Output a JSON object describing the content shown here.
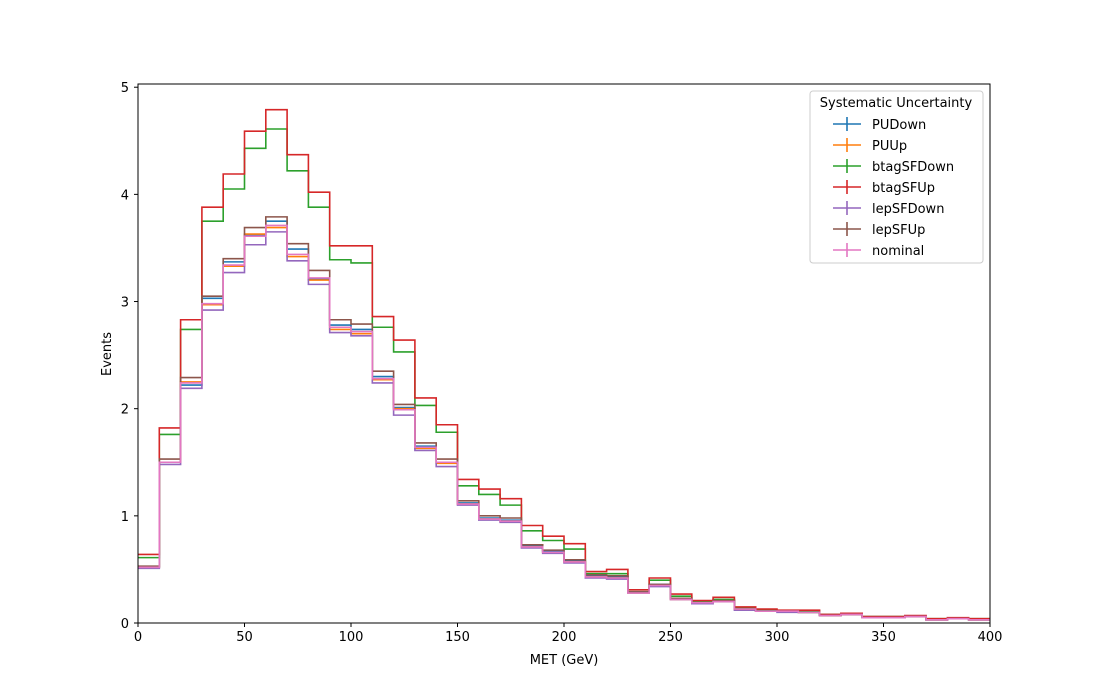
{
  "chart_data": {
    "type": "histogram-step",
    "xlabel": "MET (GeV)",
    "ylabel": "Events",
    "xlim": [
      0,
      400
    ],
    "ylim": [
      0,
      5.03
    ],
    "x_ticks": [
      0,
      50,
      100,
      150,
      200,
      250,
      300,
      350,
      400
    ],
    "y_ticks": [
      0,
      1,
      2,
      3,
      4,
      5
    ],
    "grid": false,
    "bin_edges": [
      0,
      10,
      20,
      30,
      40,
      50,
      60,
      70,
      80,
      90,
      100,
      110,
      120,
      130,
      140,
      150,
      160,
      170,
      180,
      190,
      200,
      210,
      220,
      230,
      240,
      250,
      260,
      270,
      280,
      290,
      300,
      310,
      320,
      330,
      340,
      350,
      360,
      370,
      380,
      390,
      400
    ],
    "legend": {
      "title": "Systematic Uncertainty",
      "position": "upper right"
    },
    "series": [
      {
        "name": "PUDown",
        "color": "#1f77b4",
        "values": [
          0.52,
          1.5,
          2.22,
          3.03,
          3.37,
          3.62,
          3.75,
          3.49,
          3.21,
          2.78,
          2.74,
          2.3,
          2.01,
          1.65,
          1.5,
          1.12,
          0.98,
          0.96,
          0.72,
          0.67,
          0.58,
          0.44,
          0.43,
          0.29,
          0.36,
          0.23,
          0.19,
          0.21,
          0.13,
          0.11,
          0.11,
          0.1,
          0.07,
          0.08,
          0.05,
          0.05,
          0.06,
          0.03,
          0.04,
          0.03
        ]
      },
      {
        "name": "PUUp",
        "color": "#ff7f0e",
        "values": [
          0.52,
          1.5,
          2.25,
          2.97,
          3.33,
          3.63,
          3.69,
          3.42,
          3.2,
          2.74,
          2.7,
          2.27,
          2.0,
          1.63,
          1.49,
          1.11,
          0.97,
          0.95,
          0.71,
          0.66,
          0.57,
          0.43,
          0.42,
          0.28,
          0.35,
          0.22,
          0.19,
          0.2,
          0.13,
          0.11,
          0.11,
          0.1,
          0.07,
          0.08,
          0.05,
          0.05,
          0.06,
          0.03,
          0.04,
          0.03
        ]
      },
      {
        "name": "btagSFDown",
        "color": "#2ca02c",
        "values": [
          0.61,
          1.76,
          2.74,
          3.75,
          4.05,
          4.43,
          4.61,
          4.22,
          3.88,
          3.39,
          3.36,
          2.76,
          2.53,
          2.03,
          1.78,
          1.28,
          1.2,
          1.1,
          0.86,
          0.77,
          0.69,
          0.46,
          0.46,
          0.31,
          0.4,
          0.25,
          0.2,
          0.22,
          0.14,
          0.12,
          0.11,
          0.11,
          0.08,
          0.09,
          0.06,
          0.06,
          0.06,
          0.04,
          0.04,
          0.04
        ]
      },
      {
        "name": "btagSFUp",
        "color": "#d62728",
        "values": [
          0.64,
          1.82,
          2.83,
          3.88,
          4.19,
          4.59,
          4.79,
          4.37,
          4.02,
          3.52,
          3.52,
          2.86,
          2.64,
          2.1,
          1.85,
          1.34,
          1.25,
          1.16,
          0.91,
          0.81,
          0.74,
          0.48,
          0.5,
          0.31,
          0.42,
          0.27,
          0.21,
          0.24,
          0.15,
          0.13,
          0.12,
          0.12,
          0.08,
          0.09,
          0.06,
          0.06,
          0.07,
          0.04,
          0.05,
          0.04
        ]
      },
      {
        "name": "lepSFDown",
        "color": "#9467bd",
        "values": [
          0.51,
          1.48,
          2.19,
          2.92,
          3.27,
          3.53,
          3.65,
          3.38,
          3.16,
          2.71,
          2.68,
          2.24,
          1.94,
          1.61,
          1.46,
          1.1,
          0.96,
          0.94,
          0.7,
          0.65,
          0.56,
          0.42,
          0.41,
          0.28,
          0.34,
          0.22,
          0.18,
          0.2,
          0.12,
          0.11,
          0.1,
          0.1,
          0.07,
          0.08,
          0.05,
          0.05,
          0.06,
          0.03,
          0.04,
          0.03
        ]
      },
      {
        "name": "lepSFUp",
        "color": "#8c564b",
        "values": [
          0.53,
          1.53,
          2.29,
          3.05,
          3.4,
          3.69,
          3.79,
          3.54,
          3.29,
          2.83,
          2.79,
          2.35,
          2.04,
          1.68,
          1.53,
          1.14,
          1.0,
          0.98,
          0.73,
          0.68,
          0.59,
          0.45,
          0.44,
          0.29,
          0.36,
          0.23,
          0.19,
          0.21,
          0.13,
          0.11,
          0.11,
          0.1,
          0.07,
          0.08,
          0.05,
          0.05,
          0.06,
          0.03,
          0.04,
          0.03
        ]
      },
      {
        "name": "nominal",
        "color": "#e377c2",
        "values": [
          0.52,
          1.5,
          2.24,
          2.98,
          3.34,
          3.61,
          3.71,
          3.44,
          3.22,
          2.76,
          2.72,
          2.28,
          1.99,
          1.64,
          1.5,
          1.11,
          0.97,
          0.95,
          0.71,
          0.66,
          0.57,
          0.43,
          0.42,
          0.28,
          0.35,
          0.22,
          0.19,
          0.2,
          0.13,
          0.11,
          0.11,
          0.1,
          0.07,
          0.08,
          0.05,
          0.05,
          0.06,
          0.03,
          0.04,
          0.03
        ]
      }
    ]
  }
}
